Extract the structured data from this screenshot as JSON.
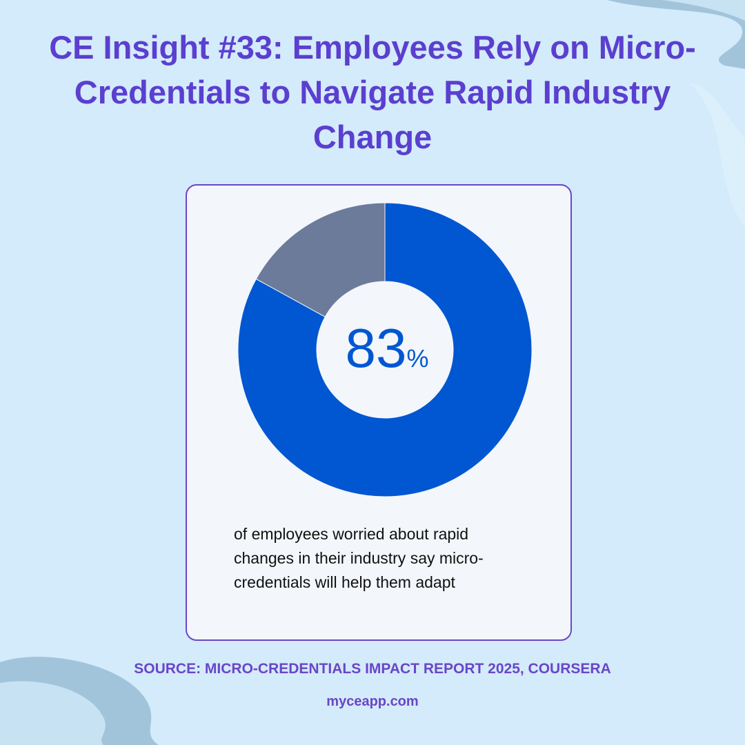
{
  "title": "CE Insight #33: Employees Rely on Micro-Credentials to Navigate Rapid Industry Change",
  "chart_data": {
    "type": "pie",
    "variant": "donut",
    "categories": [
      "",
      ""
    ],
    "values": [
      83,
      17
    ],
    "center_label": {
      "value": "83",
      "unit": "%"
    },
    "colors": [
      "#0057d1",
      "#6b7b99"
    ]
  },
  "description": "of employees worried about rapid changes in their industry say micro-credentials will help them adapt",
  "source": "SOURCE: MICRO-CREDENTIALS IMPACT REPORT 2025, COURSERA",
  "website": "myceapp.com",
  "colors": {
    "background": "#d3ebfb",
    "title": "#5b3fcf",
    "card": "#f3f6fb",
    "card_border": "#6a45c8",
    "wave": "#a2c4db"
  }
}
